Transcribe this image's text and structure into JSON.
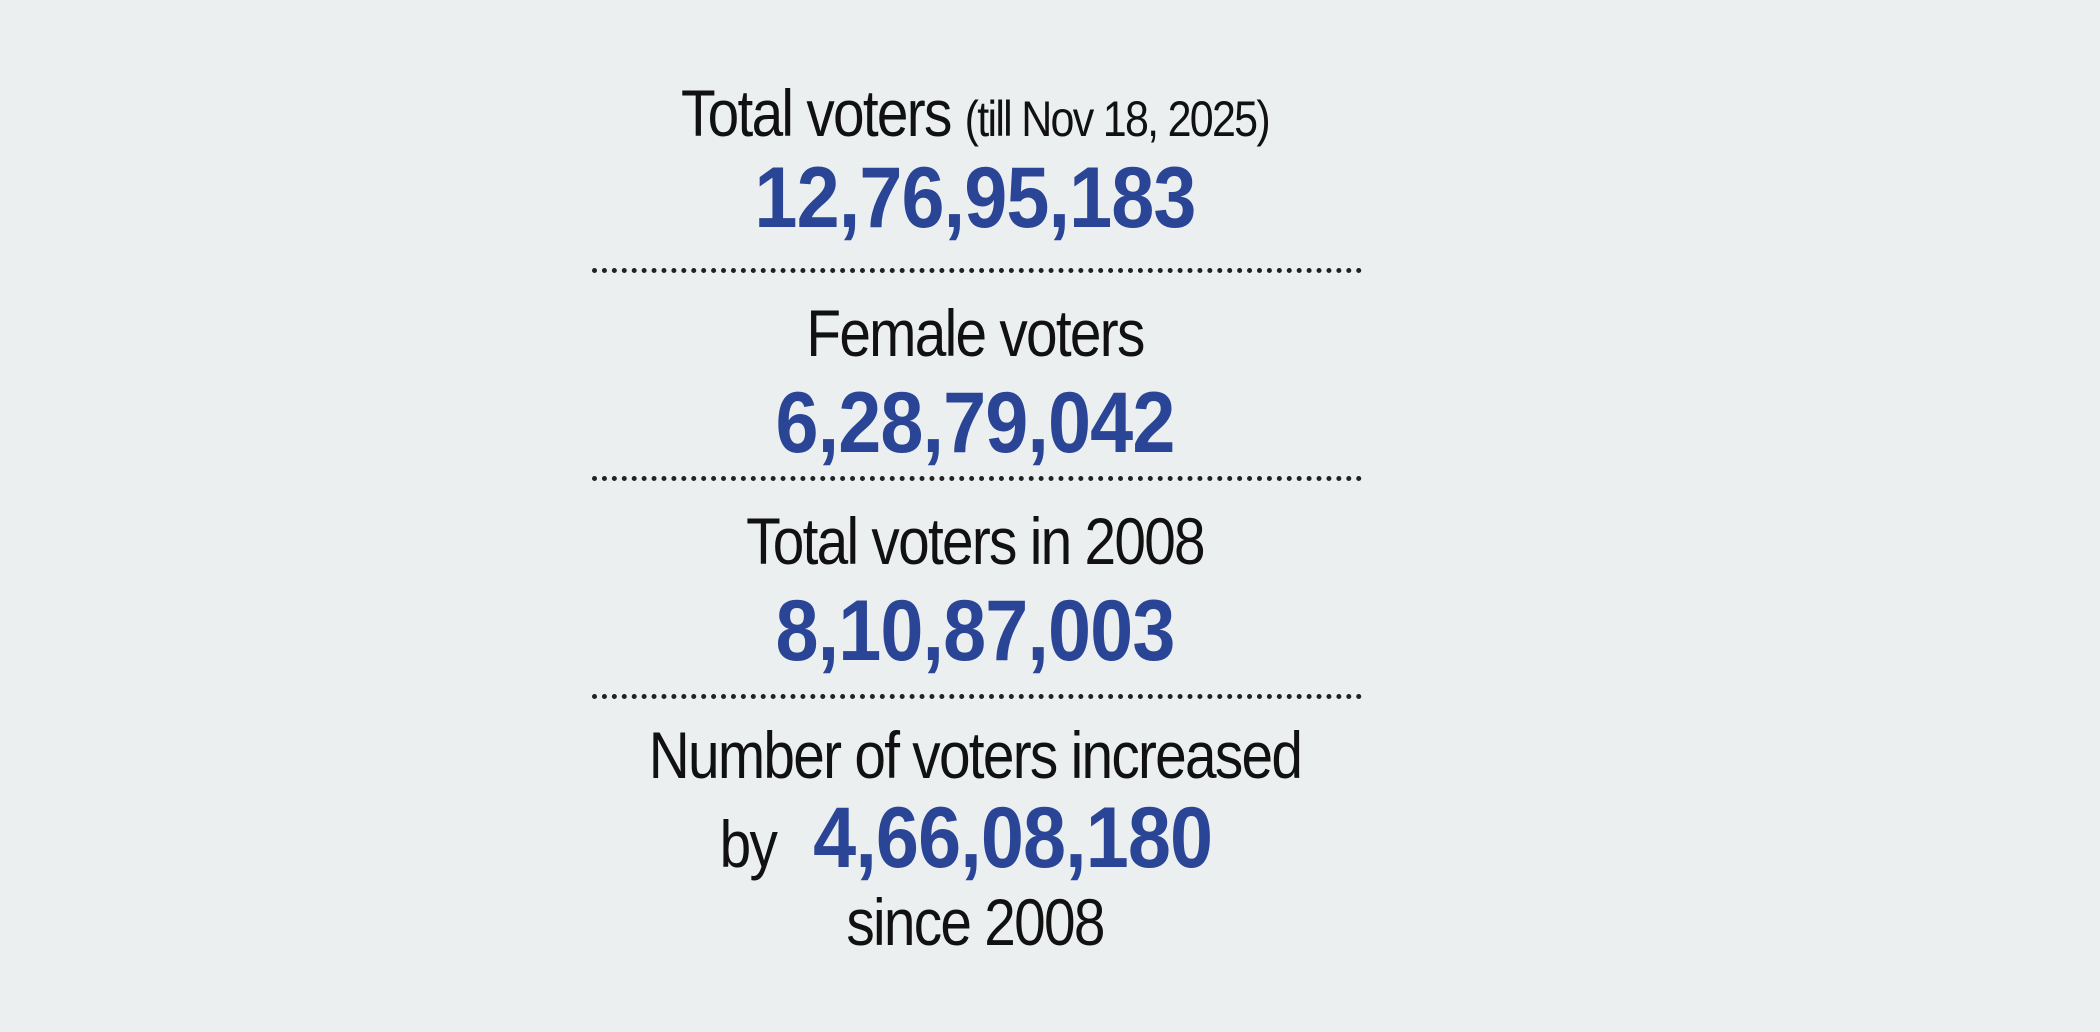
{
  "colors": {
    "background": "#eceff0",
    "accent": "#2a4596",
    "text": "#111111"
  },
  "stats": [
    {
      "label": "Total voters",
      "note": "(till Nov 18, 2025)",
      "value": "12,76,95,183"
    },
    {
      "label": "Female voters",
      "value": "6,28,79,042"
    },
    {
      "label": "Total voters in 2008",
      "value": "8,10,87,003"
    }
  ],
  "increase": {
    "line1": "Number of voters increased",
    "prefix": "by",
    "value": "4,66,08,180",
    "suffix": "since 2008"
  }
}
